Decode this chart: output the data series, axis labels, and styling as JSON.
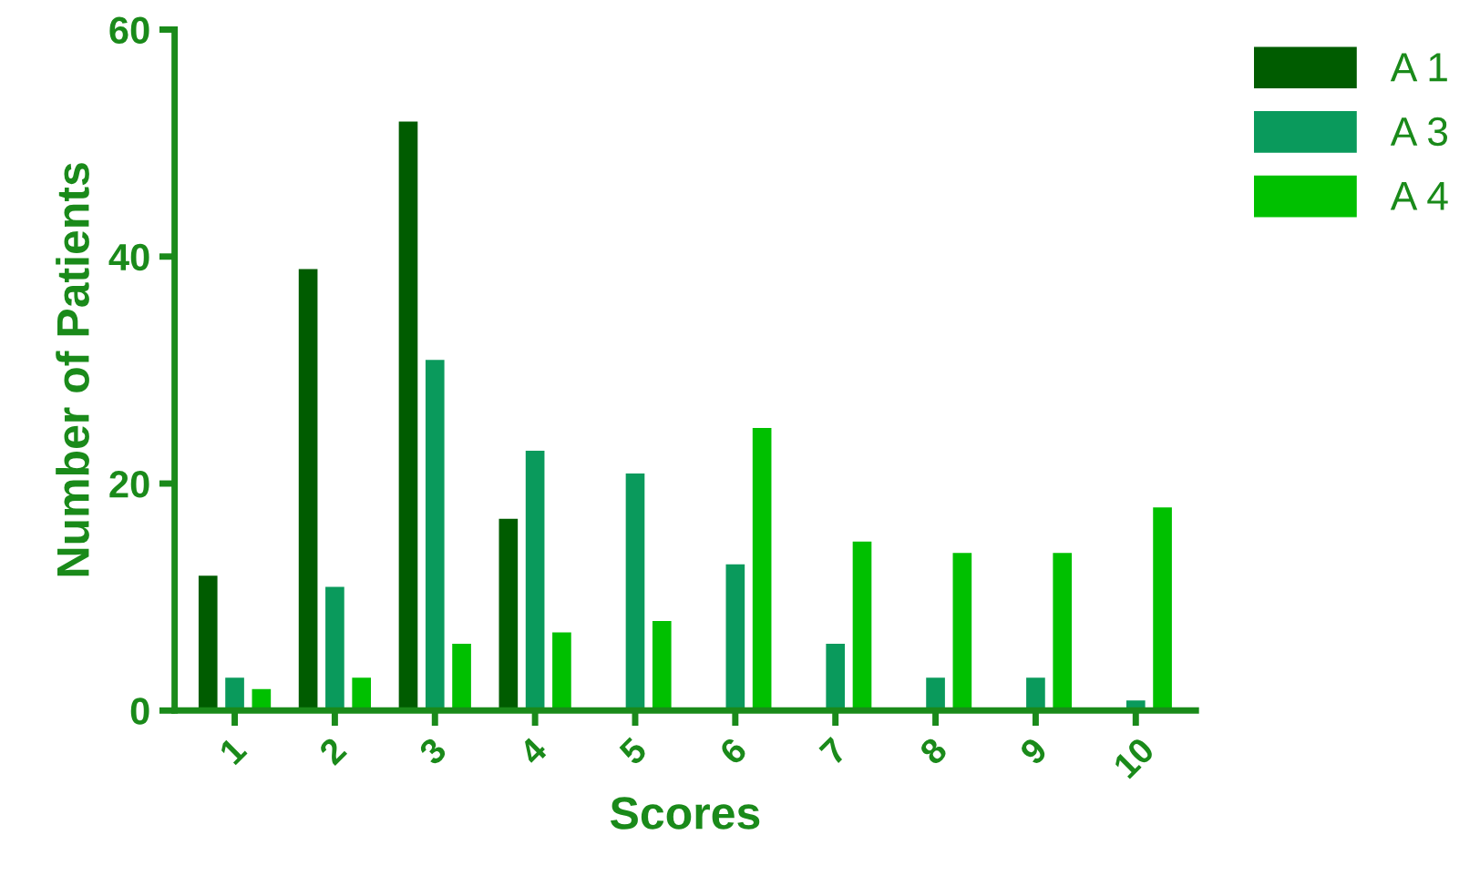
{
  "chart_data": {
    "type": "bar",
    "xlabel": "Scores",
    "ylabel": "Number of Patients",
    "categories": [
      "1",
      "2",
      "3",
      "4",
      "5",
      "6",
      "7",
      "8",
      "9",
      "10"
    ],
    "series": [
      {
        "name": "A 1",
        "color": "#005c00",
        "values": [
          12,
          39,
          52,
          17,
          null,
          null,
          null,
          null,
          null,
          null
        ]
      },
      {
        "name": "A 3",
        "color": "#0a9a5c",
        "values": [
          3,
          11,
          31,
          23,
          21,
          13,
          6,
          3,
          3,
          1
        ]
      },
      {
        "name": "A 4",
        "color": "#00c000",
        "values": [
          2,
          3,
          6,
          7,
          8,
          25,
          15,
          14,
          14,
          18
        ]
      }
    ],
    "ylim": [
      0,
      60
    ],
    "yticks": [
      0,
      20,
      40,
      60
    ],
    "grid": false,
    "legend": "top right"
  }
}
